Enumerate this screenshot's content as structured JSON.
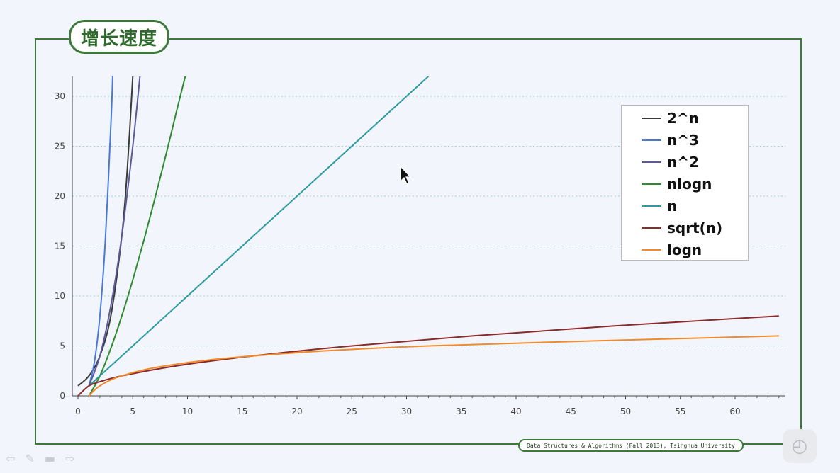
{
  "title": "增长速度",
  "footer": "Data Structures & Algorithms (Fall 2013), Tsinghua University",
  "icons": [
    "prev-arrow-icon",
    "pen-icon",
    "menu-icon",
    "next-arrow-icon",
    "player-logo-icon",
    "mouse-cursor-icon"
  ],
  "colors": {
    "frame": "#3d7a3a",
    "grid": "#9fd0cf",
    "background": "#f2f6fc"
  },
  "chart_data": {
    "type": "line",
    "title": "",
    "xlabel": "",
    "ylabel": "",
    "xlim": [
      0,
      64
    ],
    "ylim": [
      0,
      32
    ],
    "xticks": [
      0,
      5,
      10,
      15,
      20,
      25,
      30,
      35,
      40,
      45,
      50,
      55,
      60
    ],
    "yticks": [
      0,
      5,
      10,
      15,
      20,
      25,
      30
    ],
    "grid": "horizontal dotted",
    "legend_position": "top-right",
    "series": [
      {
        "name": "2^n",
        "color": "#3a3a3a",
        "x": [
          0,
          1,
          2,
          3,
          4,
          4.5,
          5
        ],
        "y": [
          1,
          2,
          4,
          8,
          16,
          22.6,
          32
        ]
      },
      {
        "name": "n^3",
        "color": "#4a78d8",
        "x": [
          1,
          1.5,
          2,
          2.5,
          3,
          3.17
        ],
        "y": [
          1,
          3.4,
          8,
          15.6,
          27,
          32
        ]
      },
      {
        "name": "n^2",
        "color": "#5a5a9a",
        "x": [
          1,
          2,
          3,
          4,
          5,
          5.66
        ],
        "y": [
          1,
          4,
          9,
          16,
          25,
          32
        ]
      },
      {
        "name": "nlogn",
        "color": "#2e8a2e",
        "x": [
          1,
          2,
          3,
          4,
          5,
          6,
          7,
          8,
          9,
          9.8
        ],
        "y": [
          0,
          2,
          4.75,
          8,
          11.6,
          15.5,
          19.65,
          24,
          28.5,
          32
        ]
      },
      {
        "name": "n",
        "color": "#2e9aa0",
        "x": [
          1,
          32
        ],
        "y": [
          1,
          32
        ]
      },
      {
        "name": "sqrt(n)",
        "color": "#8a2a2a",
        "x": [
          0,
          1,
          2,
          4,
          9,
          16,
          25,
          36,
          49,
          64
        ],
        "y": [
          0,
          1,
          1.41,
          2,
          3,
          4,
          5,
          6,
          7,
          8
        ]
      },
      {
        "name": "logn",
        "color": "#f08a2a",
        "x": [
          1,
          2,
          4,
          8,
          16,
          32,
          64
        ],
        "y": [
          0,
          1,
          2,
          3,
          4,
          5,
          6
        ]
      }
    ]
  }
}
